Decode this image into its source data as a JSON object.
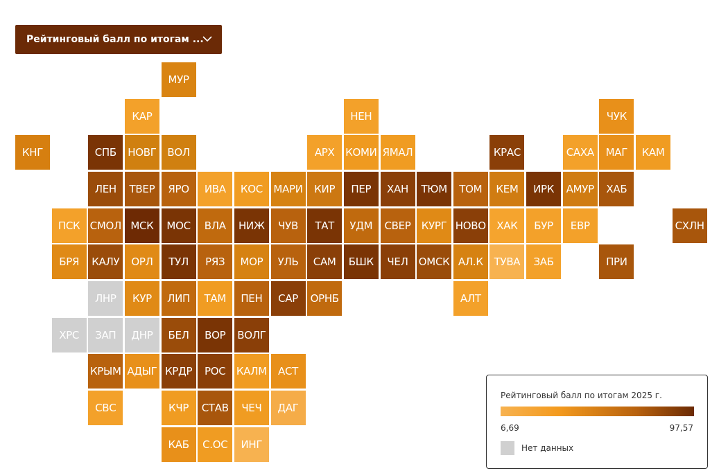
{
  "dropdown": {
    "label": "Рейтинговый балл по итогам ..."
  },
  "legend": {
    "title": "Рейтинговый балл по итогам 2025 г.",
    "min_label": "6,69",
    "max_label": "97,57",
    "no_data_label": "Нет данных"
  },
  "map": {
    "rows": [
      [
        null,
        null,
        null,
        null,
        {
          "label": "МУР",
          "color": "#d98412"
        }
      ],
      [
        null,
        null,
        null,
        {
          "label": "КАР",
          "color": "#f3a12a"
        },
        null,
        null,
        null,
        null,
        null,
        {
          "label": "НЕН",
          "color": "#f3a12a"
        },
        null,
        null,
        null,
        null,
        null,
        null,
        {
          "label": "ЧУК",
          "color": "#e8901a"
        }
      ],
      [
        {
          "label": "КНГ",
          "color": "#d67f10"
        },
        null,
        {
          "label": "СПБ",
          "color": "#7a3405"
        },
        {
          "label": "НОВГ",
          "color": "#d08010"
        },
        {
          "label": "ВОЛ",
          "color": "#d08010"
        },
        null,
        null,
        null,
        {
          "label": "АРХ",
          "color": "#f3a12a"
        },
        {
          "label": "КОМИ",
          "color": "#ef9a20"
        },
        {
          "label": "ЯМАЛ",
          "color": "#f09c22"
        },
        null,
        null,
        {
          "label": "КРАС",
          "color": "#8a3f08"
        },
        null,
        {
          "label": "САХА",
          "color": "#f3a12a"
        },
        {
          "label": "МАГ",
          "color": "#e8901a"
        },
        {
          "label": "КАМ",
          "color": "#f09c22"
        }
      ],
      [
        null,
        null,
        {
          "label": "ЛЕН",
          "color": "#9a4c0a"
        },
        {
          "label": "ТВЕР",
          "color": "#a8560c"
        },
        {
          "label": "ЯРО",
          "color": "#b8620e"
        },
        {
          "label": "ИВА",
          "color": "#f3a12a"
        },
        {
          "label": "КОС",
          "color": "#f09c22"
        },
        {
          "label": "МАРИ",
          "color": "#d68212"
        },
        {
          "label": "КИР",
          "color": "#cc7812"
        },
        {
          "label": "ПЕР",
          "color": "#7a3405"
        },
        {
          "label": "ХАН",
          "color": "#8a3f08"
        },
        {
          "label": "ТЮМ",
          "color": "#7a3405"
        },
        {
          "label": "ТОМ",
          "color": "#b8620e"
        },
        {
          "label": "КЕМ",
          "color": "#d07c12"
        },
        {
          "label": "ИРК",
          "color": "#7a3405"
        },
        {
          "label": "АМУР",
          "color": "#d07c12"
        },
        {
          "label": "ХАБ",
          "color": "#a8560c"
        }
      ],
      [
        null,
        {
          "label": "ПСК",
          "color": "#f3a12a"
        },
        {
          "label": "СМОЛ",
          "color": "#b8620e"
        },
        {
          "label": "МСК",
          "color": "#6e2a04"
        },
        {
          "label": "МОС",
          "color": "#7a3405"
        },
        {
          "label": "ВЛА",
          "color": "#c06a0e"
        },
        {
          "label": "НИЖ",
          "color": "#7a3405"
        },
        {
          "label": "ЧУВ",
          "color": "#b8620e"
        },
        {
          "label": "ТАТ",
          "color": "#7a3405"
        },
        {
          "label": "УДМ",
          "color": "#c06a0e"
        },
        {
          "label": "СВЕР",
          "color": "#b8620e"
        },
        {
          "label": "КУРГ",
          "color": "#e08a16"
        },
        {
          "label": "НОВО",
          "color": "#8a3f08"
        },
        {
          "label": "ХАК",
          "color": "#f5a42e"
        },
        {
          "label": "БУР",
          "color": "#f3a12a"
        },
        {
          "label": "ЕВР",
          "color": "#f3a12a"
        },
        null,
        null,
        {
          "label": "СХЛН",
          "color": "#a8560c"
        }
      ],
      [
        null,
        {
          "label": "БРЯ",
          "color": "#e08a16"
        },
        {
          "label": "КАЛУ",
          "color": "#9a4c0a"
        },
        {
          "label": "ОРЛ",
          "color": "#e08a16"
        },
        {
          "label": "ТУЛ",
          "color": "#7a3405"
        },
        {
          "label": "РЯЗ",
          "color": "#b8620e"
        },
        {
          "label": "МОР",
          "color": "#d68212"
        },
        {
          "label": "УЛЬ",
          "color": "#b8620e"
        },
        {
          "label": "САМ",
          "color": "#8a3f08"
        },
        {
          "label": "БШК",
          "color": "#7a3405"
        },
        {
          "label": "ЧЕЛ",
          "color": "#8a3f08"
        },
        {
          "label": "ОМСК",
          "color": "#9a4c0a"
        },
        {
          "label": "АЛ.К",
          "color": "#d68212"
        },
        {
          "label": "ТУВА",
          "color": "#f7b250"
        },
        {
          "label": "ЗАБ",
          "color": "#f3a12a"
        },
        null,
        {
          "label": "ПРИ",
          "color": "#a8560c"
        }
      ],
      [
        null,
        null,
        {
          "label": "ЛНР",
          "color": "#d0d0d0"
        },
        {
          "label": "КУР",
          "color": "#e08a16"
        },
        {
          "label": "ЛИП",
          "color": "#c06a0e"
        },
        {
          "label": "ТАМ",
          "color": "#f09c22"
        },
        {
          "label": "ПЕН",
          "color": "#b8620e"
        },
        {
          "label": "САР",
          "color": "#8a3f08"
        },
        {
          "label": "ОРНБ",
          "color": "#c06a0e"
        },
        null,
        null,
        null,
        {
          "label": "АЛТ",
          "color": "#f3a12a"
        }
      ],
      [
        null,
        {
          "label": "ХРС",
          "color": "#d0d0d0"
        },
        {
          "label": "ЗАП",
          "color": "#d0d0d0"
        },
        {
          "label": "ДНР",
          "color": "#d0d0d0"
        },
        {
          "label": "БЕЛ",
          "color": "#9a4c0a"
        },
        {
          "label": "ВОР",
          "color": "#7a3405"
        },
        {
          "label": "ВОЛГ",
          "color": "#8a3f08"
        }
      ],
      [
        null,
        null,
        {
          "label": "КРЫМ",
          "color": "#b8620e"
        },
        {
          "label": "АДЫГ",
          "color": "#e8901a"
        },
        {
          "label": "КРДР",
          "color": "#8a3f08"
        },
        {
          "label": "РОС",
          "color": "#8a3f08"
        },
        {
          "label": "КАЛМ",
          "color": "#f09c22"
        },
        {
          "label": "АСТ",
          "color": "#e8901a"
        }
      ],
      [
        null,
        null,
        {
          "label": "СВС",
          "color": "#f3a12a"
        },
        null,
        {
          "label": "КЧР",
          "color": "#f09c22"
        },
        {
          "label": "СТАВ",
          "color": "#a8560c"
        },
        {
          "label": "ЧЕЧ",
          "color": "#f09c22"
        },
        {
          "label": "ДАГ",
          "color": "#f5ac48"
        }
      ],
      [
        null,
        null,
        null,
        null,
        {
          "label": "КАБ",
          "color": "#e8901a"
        },
        {
          "label": "С.ОС",
          "color": "#f09c22"
        },
        {
          "label": "ИНГ",
          "color": "#f7b250"
        }
      ]
    ]
  }
}
